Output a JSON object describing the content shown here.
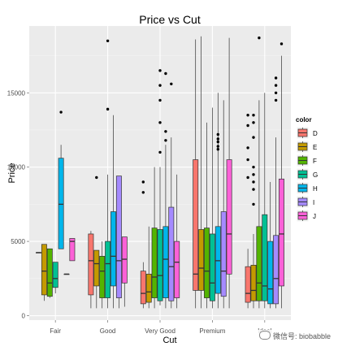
{
  "chart_data": {
    "type": "boxplot",
    "title": "Price vs Cut",
    "xlabel": "Cut",
    "ylabel": "Price",
    "ylim": [
      -300,
      19500
    ],
    "yticks": [
      0,
      5000,
      10000,
      15000
    ],
    "ytick_labels": [
      "0",
      "5000",
      "10000",
      "15000"
    ],
    "categories": [
      "Fair",
      "Good",
      "Very Good",
      "Premium",
      "Ideal"
    ],
    "legend": {
      "title": "color",
      "position": "right"
    },
    "grid": true,
    "series": [
      {
        "name": "D",
        "color": "#F8766D",
        "boxes": [
          {
            "min": 4250,
            "q1": 4250,
            "median": 4250,
            "q3": 4250,
            "max": 4250,
            "outliers": []
          },
          {
            "min": 500,
            "q1": 1400,
            "median": 3700,
            "q3": 5500,
            "max": 5700,
            "outliers": []
          },
          {
            "min": 500,
            "q1": 800,
            "median": 1500,
            "q3": 3000,
            "max": 3600,
            "outliers": [
              8300,
              9000
            ]
          },
          {
            "min": 500,
            "q1": 1700,
            "median": 2800,
            "q3": 10500,
            "max": 18600,
            "outliers": []
          },
          {
            "min": 500,
            "q1": 900,
            "median": 1500,
            "q3": 3300,
            "max": 4500,
            "outliers": [
              9300,
              10500,
              11300,
              12800,
              13500
            ]
          }
        ]
      },
      {
        "name": "E",
        "color": "#C49A00",
        "boxes": [
          {
            "min": 1000,
            "q1": 1400,
            "median": 3000,
            "q3": 4800,
            "max": 4800,
            "outliers": []
          },
          {
            "min": 500,
            "q1": 2000,
            "median": 3500,
            "q3": 4400,
            "max": 4400,
            "outliers": [
              9300
            ]
          },
          {
            "min": 500,
            "q1": 900,
            "median": 1600,
            "q3": 2800,
            "max": 6000,
            "outliers": []
          },
          {
            "min": 500,
            "q1": 1700,
            "median": 3200,
            "q3": 5800,
            "max": 18800,
            "outliers": []
          },
          {
            "min": 500,
            "q1": 1000,
            "median": 1700,
            "q3": 3400,
            "max": 5500,
            "outliers": [
              7500,
              8500,
              9000,
              9500,
              10000,
              12000,
              13000,
              13500
            ]
          }
        ]
      },
      {
        "name": "F",
        "color": "#53B400",
        "boxes": [
          {
            "min": 1200,
            "q1": 1300,
            "median": 2200,
            "q3": 4500,
            "max": 4500,
            "outliers": []
          },
          {
            "min": 500,
            "q1": 1200,
            "median": 3000,
            "q3": 4000,
            "max": 5000,
            "outliers": []
          },
          {
            "min": 500,
            "q1": 1200,
            "median": 2600,
            "q3": 5900,
            "max": 10000,
            "outliers": []
          },
          {
            "min": 500,
            "q1": 1200,
            "median": 3000,
            "q3": 5900,
            "max": 13000,
            "outliers": []
          },
          {
            "min": 500,
            "q1": 1000,
            "median": 2200,
            "q3": 6000,
            "max": 14500,
            "outliers": [
              18700
            ]
          }
        ]
      },
      {
        "name": "G",
        "color": "#00C094",
        "boxes": [
          {
            "min": 1500,
            "q1": 1900,
            "median": 2500,
            "q3": 3600,
            "max": 3600,
            "outliers": []
          },
          {
            "min": 500,
            "q1": 1200,
            "median": 3500,
            "q3": 5000,
            "max": 9500,
            "outliers": [
              13900,
              18500
            ]
          },
          {
            "min": 700,
            "q1": 1000,
            "median": 2700,
            "q3": 5800,
            "max": 10000,
            "outliers": [
              11000,
              13000,
              14500,
              15500,
              16500
            ]
          },
          {
            "min": 500,
            "q1": 1000,
            "median": 2200,
            "q3": 5500,
            "max": 14000,
            "outliers": []
          },
          {
            "min": 500,
            "q1": 1000,
            "median": 2000,
            "q3": 6800,
            "max": 15000,
            "outliers": []
          }
        ]
      },
      {
        "name": "H",
        "color": "#00B6EB",
        "boxes": [
          {
            "min": 4500,
            "q1": 4500,
            "median": 7500,
            "q3": 10600,
            "max": 11500,
            "outliers": [
              13700
            ]
          },
          {
            "min": 500,
            "q1": 2000,
            "median": 4000,
            "q3": 7000,
            "max": 13500,
            "outliers": []
          },
          {
            "min": 500,
            "q1": 1200,
            "median": 3800,
            "q3": 6000,
            "max": 11500,
            "outliers": [
              11800,
              12400,
              16300
            ]
          },
          {
            "min": 500,
            "q1": 1500,
            "median": 3700,
            "q3": 6000,
            "max": 15000,
            "outliers": [
              11200,
              11400,
              11700,
              11900,
              12200
            ]
          },
          {
            "min": 500,
            "q1": 800,
            "median": 1800,
            "q3": 5000,
            "max": 9000,
            "outliers": []
          }
        ]
      },
      {
        "name": "I",
        "color": "#A58AFF",
        "boxes": [
          {
            "min": 2800,
            "q1": 2800,
            "median": 2800,
            "q3": 2800,
            "max": 2800,
            "outliers": []
          },
          {
            "min": 500,
            "q1": 1200,
            "median": 3700,
            "q3": 9400,
            "max": 9400,
            "outliers": []
          },
          {
            "min": 500,
            "q1": 1000,
            "median": 3300,
            "q3": 7300,
            "max": 12000,
            "outliers": [
              15600
            ]
          },
          {
            "min": 500,
            "q1": 1300,
            "median": 3000,
            "q3": 7000,
            "max": 14500,
            "outliers": []
          },
          {
            "min": 500,
            "q1": 800,
            "median": 2500,
            "q3": 5400,
            "max": 12000,
            "outliers": [
              14500,
              15000,
              15500,
              16000
            ]
          }
        ]
      },
      {
        "name": "J",
        "color": "#FB61D7",
        "boxes": [
          {
            "min": 3700,
            "q1": 3700,
            "median": 5000,
            "q3": 5200,
            "max": 5200,
            "outliers": []
          },
          {
            "min": 600,
            "q1": 2200,
            "median": 3800,
            "q3": 5300,
            "max": 5300,
            "outliers": []
          },
          {
            "min": 500,
            "q1": 1200,
            "median": 3600,
            "q3": 5000,
            "max": 9500,
            "outliers": []
          },
          {
            "min": 500,
            "q1": 2800,
            "median": 5500,
            "q3": 10500,
            "max": 18700,
            "outliers": []
          },
          {
            "min": 500,
            "q1": 2000,
            "median": 5500,
            "q3": 9200,
            "max": 17500,
            "outliers": [
              18300
            ]
          }
        ]
      }
    ]
  },
  "watermark": {
    "text": "微信号: biobabble",
    "icon": "wechat-icon"
  }
}
